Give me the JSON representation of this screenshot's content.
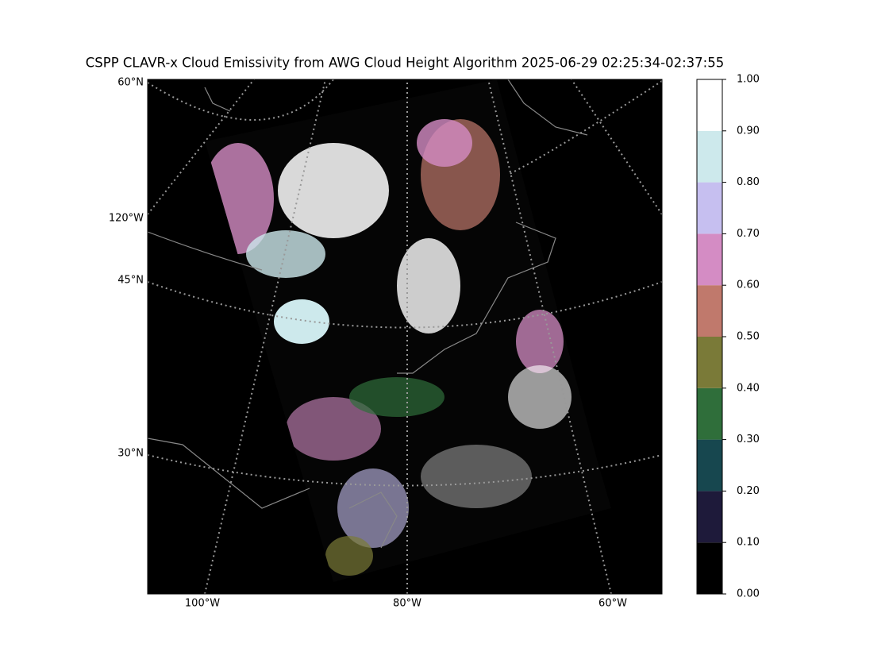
{
  "title": "CSPP CLAVR-x Cloud Emissivity from AWG Cloud Height Algorithm 2025-06-29 02:25:34-02:37:55",
  "map": {
    "lat_labels": [
      "60°N",
      "45°N",
      "30°N"
    ],
    "lon_labels": [
      "120°W",
      "100°W",
      "80°W",
      "60°W"
    ]
  },
  "colorbar": {
    "lim": [
      0,
      1
    ],
    "ticks": [
      {
        "value": 0.0,
        "label": "0.00"
      },
      {
        "value": 0.1,
        "label": "0.10"
      },
      {
        "value": 0.2,
        "label": "0.20"
      },
      {
        "value": 0.3,
        "label": "0.30"
      },
      {
        "value": 0.4,
        "label": "0.40"
      },
      {
        "value": 0.5,
        "label": "0.50"
      },
      {
        "value": 0.6,
        "label": "0.60"
      },
      {
        "value": 0.7,
        "label": "0.70"
      },
      {
        "value": 0.8,
        "label": "0.80"
      },
      {
        "value": 0.9,
        "label": "0.90"
      },
      {
        "value": 1.0,
        "label": "1.00"
      }
    ],
    "colors": [
      "#000000",
      "#1e1a3a",
      "#17474f",
      "#2f6e3a",
      "#7a7a38",
      "#c0796c",
      "#d48cc4",
      "#c6bff0",
      "#cde9ec",
      "#ffffff"
    ]
  }
}
